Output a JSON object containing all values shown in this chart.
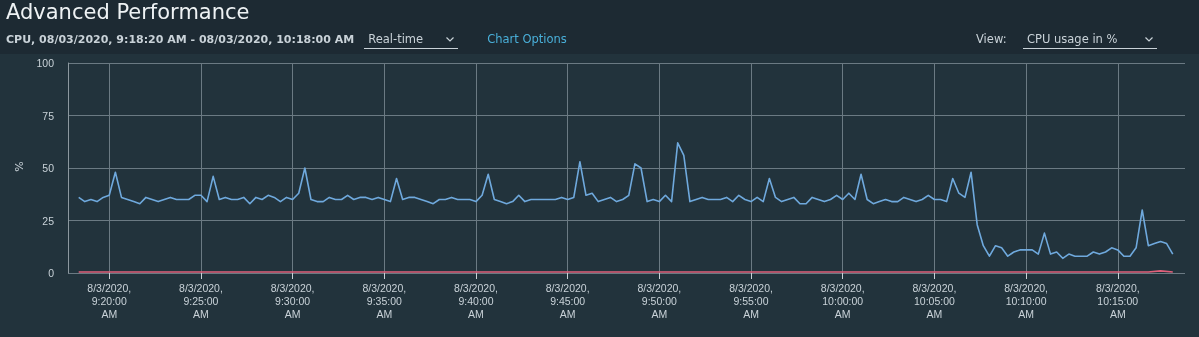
{
  "chart_data": {
    "type": "line",
    "title": "Advanced Performance",
    "subtitle": "CPU, 08/03/2020, 9:18:20 AM - 08/03/2020, 10:18:00 AM",
    "annotations": [
      "Real-time",
      "Chart Options",
      "View:",
      "CPU usage in %"
    ],
    "ylabel": "%",
    "x": [
      "2020-08-03T09:18:20",
      "2020-08-03T09:18:40",
      "2020-08-03T09:19:00",
      "2020-08-03T09:19:20",
      "2020-08-03T09:19:40",
      "2020-08-03T09:20:00",
      "2020-08-03T09:20:20",
      "2020-08-03T09:20:40",
      "2020-08-03T09:21:00",
      "2020-08-03T09:21:20",
      "2020-08-03T09:21:40",
      "2020-08-03T09:22:00",
      "2020-08-03T09:22:20",
      "2020-08-03T09:22:40",
      "2020-08-03T09:23:00",
      "2020-08-03T09:23:20",
      "2020-08-03T09:23:40",
      "2020-08-03T09:24:00",
      "2020-08-03T09:24:20",
      "2020-08-03T09:24:40",
      "2020-08-03T09:25:00",
      "2020-08-03T09:25:20",
      "2020-08-03T09:25:40",
      "2020-08-03T09:26:00",
      "2020-08-03T09:26:20",
      "2020-08-03T09:26:40",
      "2020-08-03T09:27:00",
      "2020-08-03T09:27:20",
      "2020-08-03T09:27:40",
      "2020-08-03T09:28:00",
      "2020-08-03T09:28:20",
      "2020-08-03T09:28:40",
      "2020-08-03T09:29:00",
      "2020-08-03T09:29:20",
      "2020-08-03T09:29:40",
      "2020-08-03T09:30:00",
      "2020-08-03T09:30:20",
      "2020-08-03T09:30:40",
      "2020-08-03T09:31:00",
      "2020-08-03T09:31:20",
      "2020-08-03T09:31:40",
      "2020-08-03T09:32:00",
      "2020-08-03T09:32:20",
      "2020-08-03T09:32:40",
      "2020-08-03T09:33:00",
      "2020-08-03T09:33:20",
      "2020-08-03T09:33:40",
      "2020-08-03T09:34:00",
      "2020-08-03T09:34:20",
      "2020-08-03T09:34:40",
      "2020-08-03T09:35:00",
      "2020-08-03T09:35:20",
      "2020-08-03T09:35:40",
      "2020-08-03T09:36:00",
      "2020-08-03T09:36:20",
      "2020-08-03T09:36:40",
      "2020-08-03T09:37:00",
      "2020-08-03T09:37:20",
      "2020-08-03T09:37:40",
      "2020-08-03T09:38:00",
      "2020-08-03T09:38:20",
      "2020-08-03T09:38:40",
      "2020-08-03T09:39:00",
      "2020-08-03T09:39:20",
      "2020-08-03T09:39:40",
      "2020-08-03T09:40:00",
      "2020-08-03T09:40:20",
      "2020-08-03T09:40:40",
      "2020-08-03T09:41:00",
      "2020-08-03T09:41:20",
      "2020-08-03T09:41:40",
      "2020-08-03T09:42:00",
      "2020-08-03T09:42:20",
      "2020-08-03T09:42:40",
      "2020-08-03T09:43:00",
      "2020-08-03T09:43:20",
      "2020-08-03T09:43:40",
      "2020-08-03T09:44:00",
      "2020-08-03T09:44:20",
      "2020-08-03T09:44:40",
      "2020-08-03T09:45:00",
      "2020-08-03T09:45:20",
      "2020-08-03T09:45:40",
      "2020-08-03T09:46:00",
      "2020-08-03T09:46:20",
      "2020-08-03T09:46:40",
      "2020-08-03T09:47:00",
      "2020-08-03T09:47:20",
      "2020-08-03T09:47:40",
      "2020-08-03T09:48:00",
      "2020-08-03T09:48:20",
      "2020-08-03T09:48:40",
      "2020-08-03T09:49:00",
      "2020-08-03T09:49:20",
      "2020-08-03T09:49:40",
      "2020-08-03T09:50:00",
      "2020-08-03T09:50:20",
      "2020-08-03T09:50:40",
      "2020-08-03T09:51:00",
      "2020-08-03T09:51:20",
      "2020-08-03T09:51:40",
      "2020-08-03T09:52:00",
      "2020-08-03T09:52:20",
      "2020-08-03T09:52:40",
      "2020-08-03T09:53:00",
      "2020-08-03T09:53:20",
      "2020-08-03T09:53:40",
      "2020-08-03T09:54:00",
      "2020-08-03T09:54:20",
      "2020-08-03T09:54:40",
      "2020-08-03T09:55:00",
      "2020-08-03T09:55:20",
      "2020-08-03T09:55:40",
      "2020-08-03T09:56:00",
      "2020-08-03T09:56:20",
      "2020-08-03T09:56:40",
      "2020-08-03T09:57:00",
      "2020-08-03T09:57:20",
      "2020-08-03T09:57:40",
      "2020-08-03T09:58:00",
      "2020-08-03T09:58:20",
      "2020-08-03T09:58:40",
      "2020-08-03T09:59:00",
      "2020-08-03T09:59:20",
      "2020-08-03T09:59:40",
      "2020-08-03T10:00:00",
      "2020-08-03T10:00:20",
      "2020-08-03T10:00:40",
      "2020-08-03T10:01:00",
      "2020-08-03T10:01:20",
      "2020-08-03T10:01:40",
      "2020-08-03T10:02:00",
      "2020-08-03T10:02:20",
      "2020-08-03T10:02:40",
      "2020-08-03T10:03:00",
      "2020-08-03T10:03:20",
      "2020-08-03T10:03:40",
      "2020-08-03T10:04:00",
      "2020-08-03T10:04:20",
      "2020-08-03T10:04:40",
      "2020-08-03T10:05:00",
      "2020-08-03T10:05:20",
      "2020-08-03T10:05:40",
      "2020-08-03T10:06:00",
      "2020-08-03T10:06:20",
      "2020-08-03T10:06:40",
      "2020-08-03T10:07:00",
      "2020-08-03T10:07:20",
      "2020-08-03T10:07:40",
      "2020-08-03T10:08:00",
      "2020-08-03T10:08:20",
      "2020-08-03T10:08:40",
      "2020-08-03T10:09:00",
      "2020-08-03T10:09:20",
      "2020-08-03T10:09:40",
      "2020-08-03T10:10:00",
      "2020-08-03T10:10:20",
      "2020-08-03T10:10:40",
      "2020-08-03T10:11:00",
      "2020-08-03T10:11:20",
      "2020-08-03T10:11:40",
      "2020-08-03T10:12:00",
      "2020-08-03T10:12:20",
      "2020-08-03T10:12:40",
      "2020-08-03T10:13:00",
      "2020-08-03T10:13:20",
      "2020-08-03T10:13:40",
      "2020-08-03T10:14:00",
      "2020-08-03T10:14:20",
      "2020-08-03T10:14:40",
      "2020-08-03T10:15:00",
      "2020-08-03T10:15:20",
      "2020-08-03T10:15:40",
      "2020-08-03T10:16:00",
      "2020-08-03T10:16:20",
      "2020-08-03T10:16:40",
      "2020-08-03T10:17:00",
      "2020-08-03T10:17:20",
      "2020-08-03T10:17:40",
      "2020-08-03T10:18:00"
    ],
    "series": [
      {
        "color": "#6fa9dd",
        "values": [
          36,
          34,
          35,
          34,
          36,
          37,
          48,
          36,
          35,
          34,
          33,
          36,
          35,
          34,
          35,
          36,
          35,
          35,
          35,
          37,
          37,
          34,
          46,
          35,
          36,
          35,
          35,
          36,
          33,
          36,
          35,
          37,
          36,
          34,
          36,
          35,
          38,
          50,
          35,
          34,
          34,
          36,
          35,
          35,
          37,
          35,
          36,
          36,
          35,
          36,
          35,
          34,
          45,
          35,
          36,
          36,
          35,
          34,
          33,
          35,
          35,
          36,
          35,
          35,
          35,
          34,
          37,
          47,
          35,
          34,
          33,
          34,
          37,
          34,
          35,
          35,
          35,
          35,
          35,
          36,
          35,
          36,
          53,
          37,
          38,
          34,
          35,
          36,
          34,
          35,
          37,
          52,
          50,
          34,
          35,
          34,
          37,
          34,
          62,
          56,
          34,
          35,
          36,
          35,
          35,
          35,
          36,
          34,
          37,
          35,
          34,
          36,
          34,
          45,
          36,
          34,
          35,
          36,
          33,
          33,
          36,
          35,
          34,
          35,
          37,
          35,
          38,
          35,
          47,
          35,
          33,
          34,
          35,
          34,
          34,
          36,
          35,
          34,
          35,
          37,
          35,
          35,
          34,
          45,
          38,
          36,
          48,
          23,
          13,
          8,
          13,
          12,
          8,
          10,
          11,
          11,
          11,
          9,
          19,
          9,
          10,
          7,
          9,
          8,
          8,
          8,
          10,
          9,
          10,
          12,
          11,
          8,
          8,
          12,
          30,
          13,
          14,
          15,
          14,
          9
        ]
      },
      {
        "color": "#e0607a",
        "x": [
          "2020-08-03T09:18:20",
          "2020-08-03T10:16:40",
          "2020-08-03T10:17:20",
          "2020-08-03T10:18:00"
        ],
        "values": [
          0.5,
          0.5,
          1,
          0.5
        ]
      }
    ],
    "xlim": [
      "2020-08-03T09:17:45",
      "2020-08-03T10:18:40"
    ],
    "xticks": [
      {
        "value": "2020-08-03T09:20",
        "label": "8/3/2020, 9:20:00 AM"
      },
      {
        "value": "2020-08-03T09:25",
        "label": "8/3/2020, 9:25:00 AM"
      },
      {
        "value": "2020-08-03T09:30",
        "label": "8/3/2020, 9:30:00 AM"
      },
      {
        "value": "2020-08-03T09:35",
        "label": "8/3/2020, 9:35:00 AM"
      },
      {
        "value": "2020-08-03T09:40",
        "label": "8/3/2020, 9:40:00 AM"
      },
      {
        "value": "2020-08-03T09:45",
        "label": "8/3/2020, 9:45:00 AM"
      },
      {
        "value": "2020-08-03T09:50",
        "label": "8/3/2020, 9:50:00 AM"
      },
      {
        "value": "2020-08-03T09:55",
        "label": "8/3/2020, 9:55:00 AM"
      },
      {
        "value": "2020-08-03T10:00",
        "label": "8/3/2020, 10:00:00 AM"
      },
      {
        "value": "2020-08-03T10:05",
        "label": "8/3/2020, 10:05:00 AM"
      },
      {
        "value": "2020-08-03T10:10",
        "label": "8/3/2020, 10:10:00 AM"
      },
      {
        "value": "2020-08-03T10:15",
        "label": "8/3/2020, 10:15:00 AM"
      }
    ],
    "ylim": [
      0,
      100
    ],
    "yticks": [
      0,
      25,
      50,
      75,
      100
    ],
    "grid": true
  }
}
